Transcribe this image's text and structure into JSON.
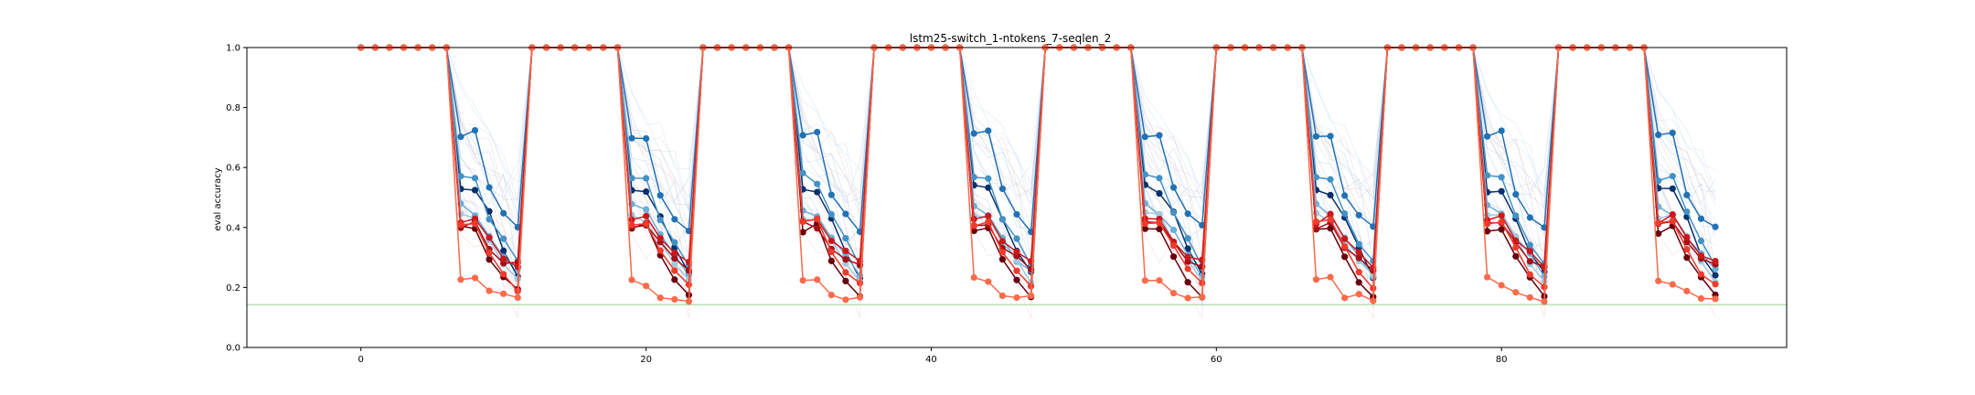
{
  "chart_data": {
    "type": "line",
    "title": "lstm25-switch_1-ntokens_7-seqlen_2",
    "xlabel": "",
    "ylabel": "eval accuracy",
    "xlim": [
      -8,
      100
    ],
    "ylim": [
      0,
      1.0
    ],
    "xticks": [
      0,
      20,
      40,
      60,
      80
    ],
    "yticks": [
      0.0,
      0.2,
      0.4,
      0.6,
      0.8,
      1.0
    ],
    "xtick_labels": [
      "0",
      "20",
      "40",
      "60",
      "80"
    ],
    "ytick_labels": [
      "0.0",
      "0.2",
      "0.4",
      "0.6",
      "0.8",
      "1.0"
    ],
    "grid": false,
    "legend": "none",
    "reference_line": {
      "y": 0.143,
      "color": "#90d090"
    },
    "period": 12,
    "cycles": 8,
    "phase_a_length": 7,
    "phase_b_length": 5,
    "x_max": 95,
    "highlighted_series": [
      {
        "color": "#08306b",
        "switch_values": [
          0.53,
          0.52,
          0.44,
          0.32,
          0.24
        ]
      },
      {
        "color": "#2171b5",
        "switch_values": [
          0.71,
          0.71,
          0.52,
          0.44,
          0.4
        ]
      },
      {
        "color": "#4292c6",
        "switch_values": [
          0.57,
          0.56,
          0.44,
          0.35,
          0.28
        ]
      },
      {
        "color": "#6baed6",
        "switch_values": [
          0.47,
          0.45,
          0.38,
          0.3,
          0.25
        ]
      },
      {
        "color": "#9ecae1",
        "switch_values": [
          0.44,
          0.43,
          0.36,
          0.28,
          0.23
        ]
      },
      {
        "color": "#67000d",
        "switch_values": [
          0.39,
          0.4,
          0.3,
          0.22,
          0.18
        ]
      },
      {
        "color": "#a50f15",
        "switch_values": [
          0.41,
          0.41,
          0.34,
          0.29,
          0.27
        ]
      },
      {
        "color": "#cb181d",
        "switch_values": [
          0.42,
          0.43,
          0.36,
          0.31,
          0.28
        ]
      },
      {
        "color": "#ef3b2c",
        "switch_values": [
          0.41,
          0.42,
          0.33,
          0.25,
          0.2
        ]
      },
      {
        "color": "#fb6a4a",
        "switch_values": [
          0.23,
          0.22,
          0.18,
          0.17,
          0.16
        ]
      }
    ],
    "background_series_count": 24,
    "background_colors": [
      "#c6dbef",
      "#b0c8e4",
      "#d0d8ee",
      "#f0c8c0",
      "#c8c8c8"
    ]
  }
}
